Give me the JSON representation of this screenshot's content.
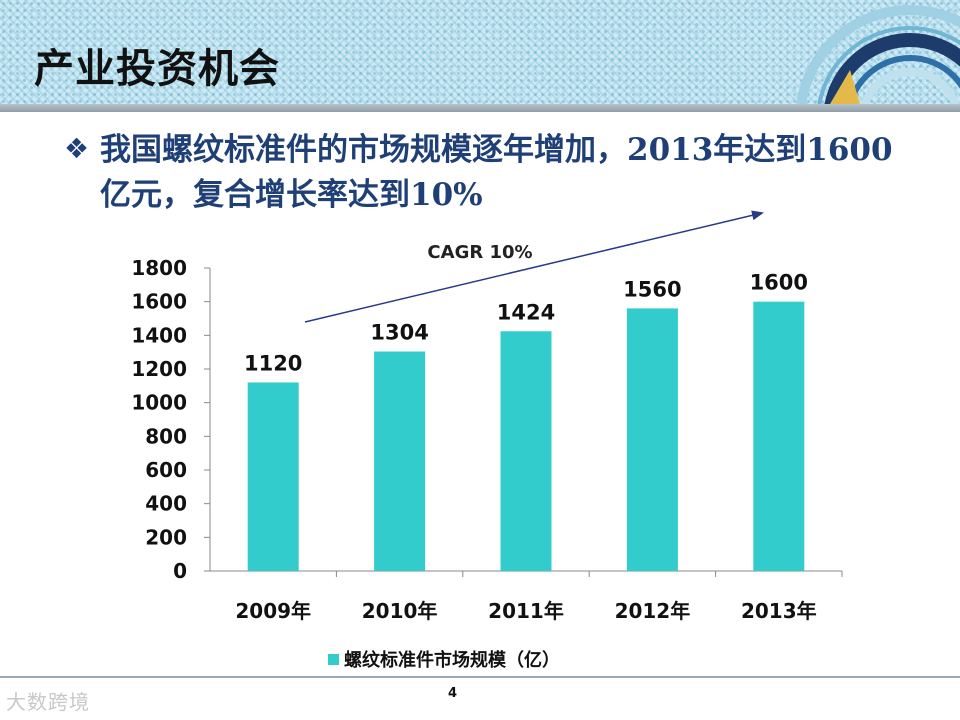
{
  "slide": {
    "title": "产业投资机会",
    "bullet": "我国螺纹标准件的市场规模逐年增加，2013年达到1600亿元，复合增长率达到10%",
    "page_number": "4",
    "watermark": "大数跨境"
  },
  "colors": {
    "bar": "#33cccc",
    "text_blue": "#1f3f77",
    "arrow": "#2b3a86"
  },
  "chart_data": {
    "type": "bar",
    "categories": [
      "2009年",
      "2010年",
      "2011年",
      "2012年",
      "2013年"
    ],
    "series": [
      {
        "name": "螺纹标准件市场规模（亿）",
        "values": [
          1120,
          1304,
          1424,
          1560,
          1600
        ]
      }
    ],
    "ylim": [
      0,
      1800
    ],
    "yticks": [
      0,
      200,
      400,
      600,
      800,
      1000,
      1200,
      1400,
      1600,
      1800
    ],
    "annotation": "CAGR 10%",
    "grid": false,
    "legend_position": "bottom"
  }
}
